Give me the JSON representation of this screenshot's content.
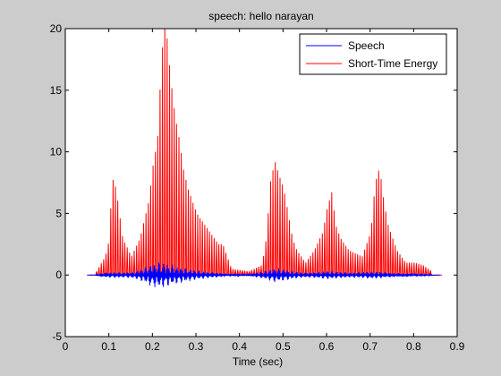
{
  "chart_data": {
    "type": "line",
    "title": "speech: hello narayan",
    "xlabel": "Time (sec)",
    "ylabel": "",
    "xlim": [
      0,
      0.9
    ],
    "ylim": [
      -5,
      20
    ],
    "xticks": [
      0,
      0.1,
      0.2,
      0.3,
      0.4,
      0.5,
      0.6,
      0.7,
      0.8,
      0.9
    ],
    "xtick_labels": [
      "0",
      "0.1",
      "0.2",
      "0.3",
      "0.4",
      "0.5",
      "0.6",
      "0.7",
      "0.8",
      "0.9"
    ],
    "yticks": [
      -5,
      0,
      5,
      10,
      15,
      20
    ],
    "ytick_labels": [
      "-5",
      "0",
      "5",
      "10",
      "15",
      "20"
    ],
    "grid": false,
    "legend_position": "top-right",
    "series": [
      {
        "name": "Speech",
        "color": "#0000ff",
        "x": [
          0.07,
          0.09,
          0.11,
          0.13,
          0.16,
          0.18,
          0.2,
          0.22,
          0.24,
          0.26,
          0.28,
          0.3,
          0.32,
          0.35,
          0.37,
          0.42,
          0.46,
          0.48,
          0.5,
          0.52,
          0.55,
          0.58,
          0.6,
          0.62,
          0.65,
          0.7,
          0.72,
          0.74,
          0.77,
          0.8,
          0.84
        ],
        "amplitude": [
          0.05,
          0.2,
          0.25,
          0.2,
          0.3,
          0.6,
          1.0,
          1.1,
          0.9,
          0.7,
          0.55,
          0.4,
          0.3,
          0.2,
          0.1,
          0.08,
          0.35,
          0.6,
          0.5,
          0.35,
          0.2,
          0.25,
          0.35,
          0.3,
          0.2,
          0.3,
          0.3,
          0.2,
          0.15,
          0.12,
          0.05
        ]
      },
      {
        "name": "Short-Time Energy",
        "color": "#ff0000",
        "x": [
          0.07,
          0.09,
          0.1,
          0.105,
          0.115,
          0.13,
          0.15,
          0.17,
          0.19,
          0.2,
          0.21,
          0.22,
          0.225,
          0.23,
          0.24,
          0.25,
          0.26,
          0.27,
          0.28,
          0.29,
          0.3,
          0.31,
          0.32,
          0.33,
          0.34,
          0.35,
          0.36,
          0.38,
          0.42,
          0.45,
          0.46,
          0.47,
          0.48,
          0.49,
          0.5,
          0.51,
          0.52,
          0.53,
          0.55,
          0.57,
          0.59,
          0.6,
          0.61,
          0.62,
          0.63,
          0.65,
          0.68,
          0.7,
          0.71,
          0.72,
          0.73,
          0.74,
          0.75,
          0.76,
          0.78,
          0.8,
          0.82,
          0.84
        ],
        "peaks": [
          0.3,
          1.5,
          3.0,
          8.0,
          7.0,
          3.0,
          1.5,
          3.0,
          6.0,
          9.0,
          11.0,
          18.0,
          20.0,
          20.0,
          16.0,
          13.0,
          11.0,
          8.5,
          7.0,
          6.0,
          5.0,
          4.5,
          4.0,
          3.5,
          3.0,
          2.5,
          2.5,
          0.5,
          0.3,
          0.8,
          3.0,
          7.8,
          9.2,
          8.0,
          7.0,
          5.0,
          3.0,
          2.0,
          1.0,
          2.0,
          3.5,
          5.5,
          6.7,
          4.0,
          3.0,
          2.0,
          1.5,
          3.5,
          7.5,
          8.7,
          6.0,
          4.0,
          3.0,
          2.0,
          1.0,
          1.0,
          0.8,
          0.3
        ]
      }
    ]
  }
}
